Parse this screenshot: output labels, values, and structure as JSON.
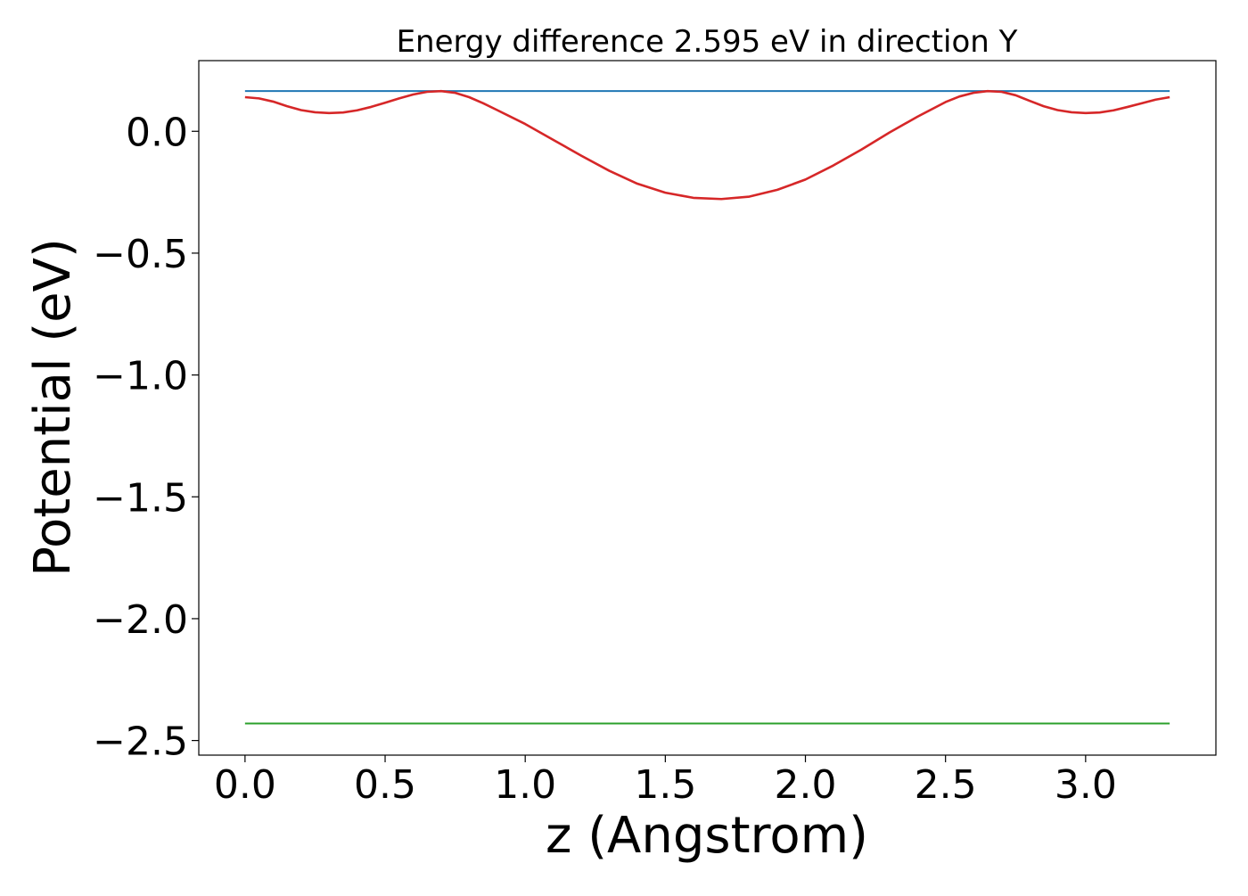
{
  "chart_data": {
    "type": "line",
    "title": "Energy difference 2.595 eV in direction Y",
    "xlabel": "z (Angstrom)",
    "ylabel": "Potential (eV)",
    "xlim": [
      -0.165,
      3.465
    ],
    "ylim": [
      -2.56,
      0.29
    ],
    "xticks": [
      0.0,
      0.5,
      1.0,
      1.5,
      2.0,
      2.5,
      3.0
    ],
    "xtick_labels": [
      "0.0",
      "0.5",
      "1.0",
      "1.5",
      "2.0",
      "2.5",
      "3.0"
    ],
    "yticks": [
      0.0,
      -0.5,
      -1.0,
      -1.5,
      -2.0,
      -2.5
    ],
    "ytick_labels": [
      "0.0",
      "−0.5",
      "−1.0",
      "−1.5",
      "−2.0",
      "−2.5"
    ],
    "grid": false,
    "series": [
      {
        "color": "#1f77b4",
        "x": [
          0.0,
          3.3
        ],
        "y": [
          0.165,
          0.165
        ]
      },
      {
        "color": "#d62728",
        "x": [
          0.0,
          0.05,
          0.1,
          0.15,
          0.2,
          0.25,
          0.3,
          0.35,
          0.4,
          0.45,
          0.5,
          0.55,
          0.6,
          0.65,
          0.7,
          0.75,
          0.8,
          0.85,
          0.9,
          1.0,
          1.1,
          1.2,
          1.3,
          1.4,
          1.5,
          1.6,
          1.7,
          1.8,
          1.9,
          2.0,
          2.1,
          2.2,
          2.3,
          2.4,
          2.5,
          2.55,
          2.6,
          2.65,
          2.7,
          2.75,
          2.8,
          2.85,
          2.9,
          2.95,
          3.0,
          3.05,
          3.1,
          3.15,
          3.2,
          3.25,
          3.3
        ],
        "y": [
          0.14,
          0.135,
          0.122,
          0.103,
          0.087,
          0.078,
          0.075,
          0.077,
          0.086,
          0.1,
          0.117,
          0.135,
          0.151,
          0.162,
          0.165,
          0.158,
          0.14,
          0.115,
          0.087,
          0.03,
          -0.035,
          -0.1,
          -0.162,
          -0.215,
          -0.252,
          -0.273,
          -0.278,
          -0.268,
          -0.24,
          -0.198,
          -0.14,
          -0.075,
          -0.005,
          0.06,
          0.12,
          0.143,
          0.158,
          0.165,
          0.162,
          0.148,
          0.125,
          0.103,
          0.087,
          0.078,
          0.075,
          0.077,
          0.086,
          0.1,
          0.115,
          0.13,
          0.14
        ]
      },
      {
        "color": "#2ca02c",
        "x": [
          0.0,
          3.3
        ],
        "y": [
          -2.43,
          -2.43
        ]
      }
    ]
  }
}
